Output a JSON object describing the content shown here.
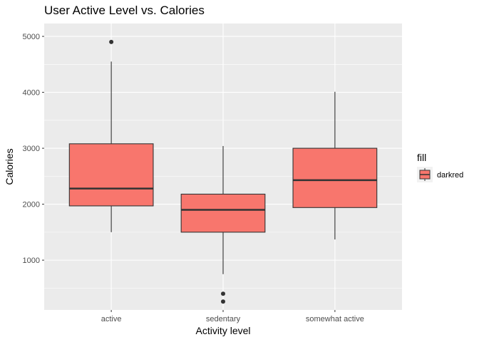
{
  "chart_data": {
    "type": "boxplot",
    "title": "User Active Level vs. Calories",
    "xlabel": "Activity level",
    "ylabel": "Calories",
    "categories": [
      "active",
      "sedentary",
      "somewhat active"
    ],
    "ylim": [
      110,
      5230
    ],
    "yticks": [
      1000,
      2000,
      3000,
      4000,
      5000
    ],
    "grid": true,
    "fill_color": "#F8766D",
    "panel_color": "#EBEBEB",
    "legend": {
      "title": "fill",
      "labels": [
        "darkred"
      ],
      "placement": "right"
    },
    "series": [
      {
        "category": "active",
        "min": 1500,
        "q1": 1970,
        "median": 2280,
        "q3": 3080,
        "max": 4550,
        "outliers": [
          4900
        ]
      },
      {
        "category": "sedentary",
        "min": 750,
        "q1": 1500,
        "median": 1900,
        "q3": 2180,
        "max": 3040,
        "outliers": [
          400,
          260
        ]
      },
      {
        "category": "somewhat active",
        "min": 1370,
        "q1": 1940,
        "median": 2430,
        "q3": 3000,
        "max": 4010,
        "outliers": []
      }
    ]
  }
}
